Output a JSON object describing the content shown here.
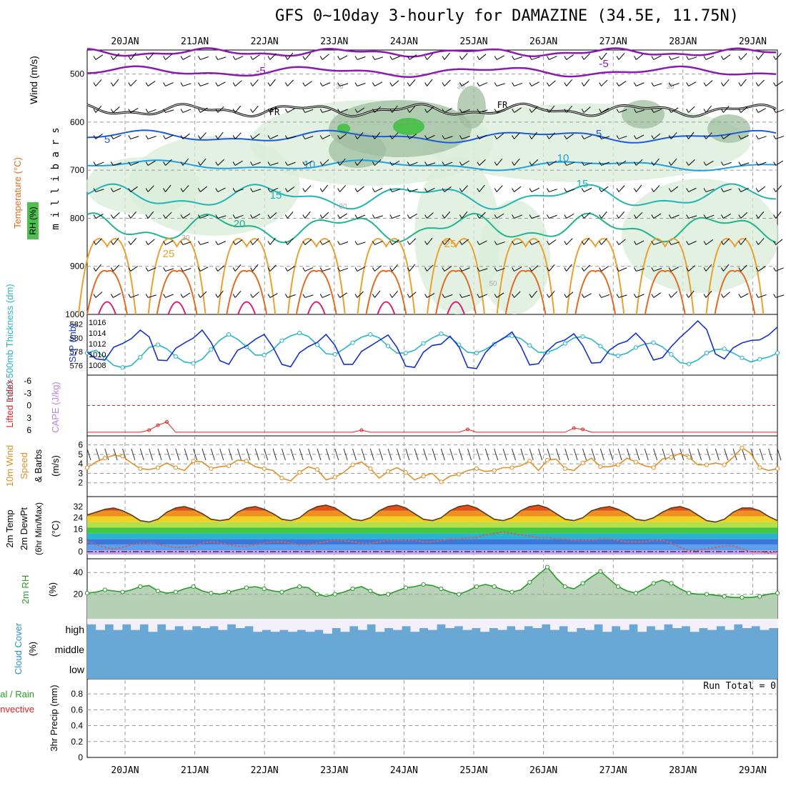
{
  "title": "GFS 0~10day 3-hourly for DAMAZINE (34.5E, 11.75N)",
  "dates": [
    "20JAN",
    "21JAN",
    "22JAN",
    "23JAN",
    "24JAN",
    "25JAN",
    "26JAN",
    "27JAN",
    "28JAN",
    "29JAN"
  ],
  "colors": {
    "grid": "#999999",
    "rh_fill_light": "#d9ecd9",
    "rh_fill_mid": "#9fbf9f",
    "rh_fill_dark": "#4ec04e",
    "thickness": "#28b4c8",
    "slp": "#1432c8",
    "lifted": "#e02020",
    "wind": "#e09028",
    "rh2m": "#2a9a2a",
    "cloud": "#69a8d4",
    "cloud_clear": "#f4f0fa"
  },
  "panels": {
    "upper": {
      "ylabel_parts": [
        "RH (%)",
        "Temperature (°C)",
        "Wind (m/s)"
      ],
      "yaxis_label": "m i l l i b a r s",
      "levels": [
        "500",
        "600",
        "700",
        "800",
        "900",
        "1000"
      ],
      "freezing_label": "FR",
      "contour_labels": [
        "-5",
        "-5",
        "5",
        "5",
        "10",
        "10",
        "15",
        "15",
        "20",
        "25",
        "25",
        "30",
        "30",
        "30",
        "30",
        "30",
        "50"
      ]
    },
    "thickness_slp": {
      "left_label": "1000-500mb Thickness (dm)",
      "right_label": "SLP (mb)",
      "left_ticks": [
        "582",
        "580",
        "578",
        "576"
      ],
      "right_ticks": [
        "1016",
        "1014",
        "1012",
        "1010",
        "1008"
      ]
    },
    "instability": {
      "left_label": "Lifted Index",
      "right_label": "CAPE (J/kg)",
      "ticks": [
        "-6",
        "-3",
        "0",
        "3",
        "6"
      ]
    },
    "wind10m": {
      "label_lines": [
        "10m Wind",
        "Speed",
        "& Barbs"
      ],
      "unit": "(m/s)",
      "ticks": [
        "6",
        "5",
        "4",
        "3",
        "2"
      ]
    },
    "temp2m": {
      "label_lines": [
        "2m Temp",
        "2m DewPt",
        "(6hr Min/Max)"
      ],
      "unit": "(°C)",
      "ticks": [
        "32",
        "24",
        "16",
        "8",
        "0"
      ]
    },
    "rh2m": {
      "label": "2m RH",
      "unit": "(%)",
      "ticks": [
        "40",
        "20"
      ]
    },
    "cloud": {
      "label": "Cloud Cover",
      "unit": "(%)",
      "levels": [
        "high",
        "middle",
        "low"
      ]
    },
    "precip": {
      "label_lines": [
        "Total / Rain",
        "Convective"
      ],
      "label": "3hr Precip (mm)",
      "ticks": [
        "0.8",
        "0.6",
        "0.4",
        "0.2",
        "0"
      ],
      "run_total": "Run Total = 0"
    }
  },
  "chart_data": [
    {
      "type": "line",
      "title": "1000-500mb Thickness (dm) and SLP (mb)",
      "series": [
        {
          "name": "Thickness (dm)",
          "values": [
            577.8,
            578.2,
            577.1,
            576.0,
            575.7,
            576.0,
            577.2,
            578.6,
            579.0,
            578.4,
            577.3,
            576.5,
            576.3,
            576.9,
            578.3,
            579.7,
            580.5,
            579.8,
            578.7,
            577.5,
            577.5,
            578.3,
            579.6,
            580.3,
            580.7,
            580.2,
            579.0,
            577.7,
            577.6,
            578.4,
            579.3,
            580.1,
            580.5,
            580.0,
            578.8,
            577.8,
            577.8,
            578.2,
            579.2,
            580.0,
            580.6,
            580.1,
            579.0,
            577.9,
            577.8,
            578.3,
            579.1,
            580.0,
            580.3,
            579.9,
            578.9,
            577.9,
            577.9,
            578.4,
            579.2,
            580.0,
            580.2,
            579.8,
            578.8,
            577.7,
            577.4,
            577.8,
            578.6,
            579.1,
            579.3,
            578.7,
            577.6,
            576.4,
            576.2,
            576.8,
            577.8,
            578.3,
            578.4,
            577.8,
            577.1,
            576.5,
            576.9,
            577.2,
            577.8
          ],
          "ylim": [
            575,
            583
          ]
        },
        {
          "name": "SLP (mb)",
          "values": [
            1011.3,
            1010.2,
            1010.0,
            1012.1,
            1012.7,
            1013.5,
            1014.9,
            1013.8,
            1010.0,
            1009.9,
            1011.9,
            1012.8,
            1013.6,
            1014.9,
            1012.9,
            1009.9,
            1009.3,
            1011.6,
            1012.3,
            1013.4,
            1014.2,
            1012.1,
            1009.3,
            1008.9,
            1011.2,
            1012.2,
            1012.9,
            1014.2,
            1012.4,
            1009.3,
            1009.3,
            1011.4,
            1012.3,
            1013.2,
            1014.1,
            1012.1,
            1009.0,
            1008.8,
            1011.3,
            1012.4,
            1012.6,
            1013.9,
            1012.2,
            1008.8,
            1008.6,
            1011.2,
            1012.7,
            1013.5,
            1014.6,
            1012.3,
            1009.2,
            1009.4,
            1011.5,
            1012.8,
            1013.3,
            1014.3,
            1012.4,
            1009.5,
            1009.6,
            1011.6,
            1012.6,
            1013.1,
            1014.4,
            1012.9,
            1010.0,
            1010.4,
            1012.2,
            1013.7,
            1015.0,
            1016.4,
            1015.0,
            1011.0,
            1010.2,
            1012.0,
            1012.8,
            1013.2,
            1013.3,
            1014.1,
            1015.4
          ],
          "ylim": [
            1008,
            1017
          ]
        }
      ]
    },
    {
      "type": "line",
      "title": "Lifted Index",
      "values": [
        6.5,
        6.5,
        6.5,
        6.5,
        6.5,
        6.5,
        6.5,
        6.0,
        4.8,
        4.0,
        6.5,
        6.5,
        6.5,
        6.5,
        6.5,
        6.5,
        6.5,
        6.5,
        6.5,
        6.5,
        6.5,
        6.5,
        6.5,
        6.5,
        6.5,
        6.5,
        6.5,
        6.5,
        6.5,
        6.5,
        6.5,
        6.0,
        6.5,
        6.5,
        6.5,
        6.5,
        6.5,
        6.5,
        6.5,
        6.5,
        6.5,
        6.5,
        6.5,
        5.8,
        6.5,
        6.5,
        6.5,
        6.5,
        6.5,
        6.5,
        6.5,
        6.5,
        6.5,
        6.5,
        6.5,
        5.5,
        5.8,
        6.5,
        6.5,
        6.5,
        6.5,
        6.5,
        6.5,
        6.5,
        6.5,
        6.5,
        6.5,
        6.5,
        6.5,
        6.5,
        6.5,
        6.5,
        6.5,
        6.5,
        6.5,
        6.5,
        6.5,
        6.5,
        6.5
      ],
      "ylim": [
        6,
        -6
      ]
    },
    {
      "type": "line",
      "title": "10m Wind Speed (m/s)",
      "values": [
        3.6,
        4.2,
        4.6,
        4.9,
        4.8,
        4.1,
        3.5,
        3.4,
        3.6,
        4.1,
        3.6,
        3.3,
        4.3,
        4.2,
        3.5,
        3.7,
        3.8,
        4.4,
        4.3,
        3.7,
        3.5,
        3.3,
        2.5,
        2.2,
        3.1,
        3.7,
        3.4,
        2.3,
        2.6,
        3.1,
        3.9,
        4.2,
        3.5,
        2.5,
        3.2,
        3.6,
        3.1,
        2.3,
        2.7,
        3.0,
        2.1,
        2.7,
        2.9,
        3.3,
        3.5,
        3.2,
        3.3,
        3.6,
        3.6,
        3.8,
        4.3,
        3.3,
        4.4,
        4.5,
        3.5,
        3.3,
        4.1,
        4.6,
        3.7,
        3.7,
        3.9,
        4.6,
        4.2,
        3.8,
        3.6,
        4.5,
        4.7,
        5.1,
        4.7,
        3.9,
        3.9,
        4.1,
        3.9,
        4.7,
        5.7,
        5.1,
        3.6,
        3.3,
        3.5
      ],
      "ylim": [
        1,
        6.5
      ]
    },
    {
      "type": "area",
      "title": "2m Temp / DewPt (°C)",
      "series": [
        {
          "name": "2m Temp",
          "values": [
            26,
            28,
            30,
            31,
            29,
            26,
            22,
            21,
            23,
            28,
            31,
            32,
            30,
            27,
            23,
            22,
            23,
            28,
            31,
            32,
            30,
            27,
            23,
            22,
            24,
            29,
            32,
            33,
            31,
            27,
            23,
            22,
            24,
            29,
            32,
            33,
            31,
            27,
            23,
            22,
            24,
            29,
            32,
            33,
            31,
            27,
            23,
            22,
            24,
            29,
            32,
            33,
            31,
            27,
            23,
            22,
            24,
            29,
            31,
            32,
            30,
            27,
            23,
            22,
            24,
            28,
            31,
            32,
            30,
            26,
            22,
            21,
            23,
            28,
            31,
            31,
            29,
            25,
            22
          ]
        },
        {
          "name": "2m DewPt",
          "values": [
            7,
            5,
            3,
            2,
            3,
            5,
            6,
            6,
            5,
            4,
            3,
            3,
            4,
            6,
            7,
            6,
            5,
            4,
            4,
            5,
            6,
            7,
            7,
            6,
            5,
            5,
            6,
            7,
            8,
            8,
            7,
            6,
            6,
            7,
            8,
            8,
            8,
            8,
            7,
            7,
            8,
            9,
            9,
            10,
            10,
            12,
            13,
            14,
            13,
            12,
            11,
            10,
            10,
            9,
            9,
            8,
            8,
            8,
            9,
            9,
            8,
            7,
            7,
            7,
            8,
            8,
            6,
            3,
            1,
            1,
            2,
            3,
            4,
            4,
            2,
            0,
            0,
            -1,
            0
          ]
        }
      ],
      "ylim": [
        -2,
        36
      ]
    },
    {
      "type": "area",
      "title": "2m RH (%)",
      "values": [
        21,
        22,
        24,
        23,
        22,
        24,
        27,
        28,
        23,
        21,
        22,
        25,
        27,
        23,
        21,
        20,
        22,
        24,
        26,
        27,
        25,
        23,
        22,
        25,
        27,
        26,
        20,
        18,
        20,
        22,
        25,
        27,
        23,
        19,
        20,
        23,
        26,
        27,
        29,
        28,
        25,
        22,
        20,
        23,
        27,
        29,
        27,
        24,
        22,
        24,
        31,
        38,
        45,
        35,
        27,
        25,
        30,
        36,
        41,
        34,
        27,
        23,
        21,
        25,
        30,
        33,
        30,
        25,
        21,
        20,
        20,
        19,
        18,
        17,
        17,
        17,
        18,
        20,
        21
      ],
      "ylim": [
        0,
        50
      ]
    },
    {
      "type": "heatmap",
      "title": "Cloud Cover (%) high",
      "values": [
        70,
        40,
        70,
        40,
        70,
        40,
        70,
        30,
        70,
        40,
        60,
        40,
        60,
        50,
        60,
        40,
        70,
        50,
        60,
        30,
        40,
        30,
        40,
        30,
        40,
        30,
        40,
        20,
        50,
        30,
        60,
        40,
        70,
        30,
        50,
        40,
        60,
        30,
        50,
        40,
        70,
        50,
        60,
        40,
        50,
        30,
        50,
        40,
        60,
        40,
        60,
        50,
        70,
        40,
        60,
        30,
        50,
        40,
        70,
        30,
        60,
        40,
        70,
        30,
        60,
        40,
        70,
        50,
        60,
        30,
        50,
        40,
        60,
        40,
        70,
        50,
        60,
        40,
        50
      ]
    },
    {
      "type": "bar",
      "title": "3hr Precip (mm)",
      "values": [
        0
      ],
      "ylim": [
        0,
        0.9
      ]
    }
  ]
}
